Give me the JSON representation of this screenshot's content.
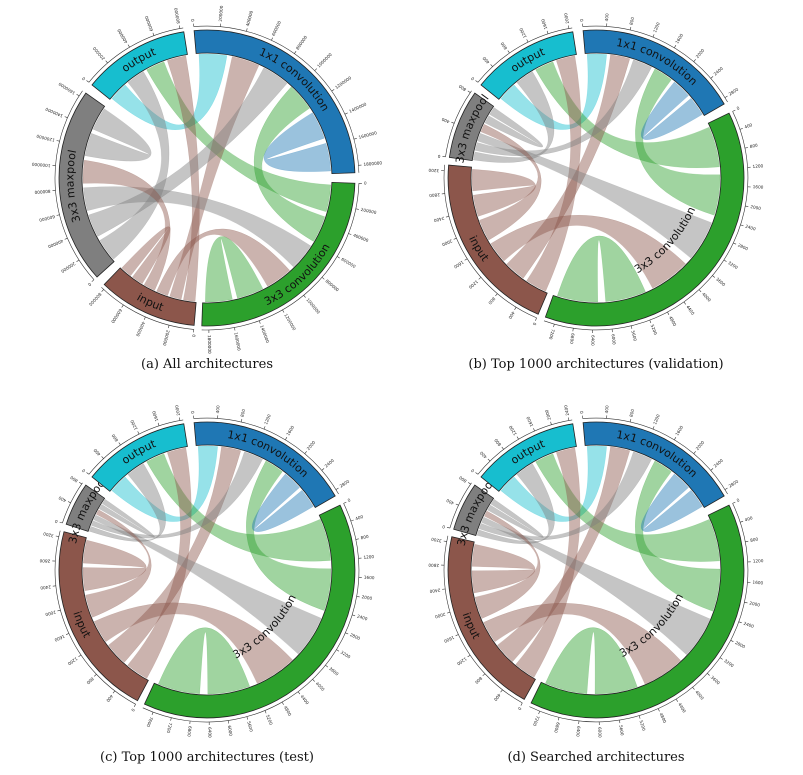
{
  "colors": {
    "output": "#17becf",
    "conv1x1": "#1f77b4",
    "conv3x3": "#2ca02c",
    "input": "#8c564b",
    "maxpool": "#7f7f7f"
  },
  "panels": [
    {
      "caption": "(a) All architectures",
      "segments": [
        {
          "id": "conv1x1",
          "label": "1x1 convolution",
          "color": "#1f77b4",
          "start": -5,
          "end": 88,
          "ticks": [
            "0",
            "200000",
            "400000",
            "600000",
            "800000",
            "1000000",
            "1200000",
            "1400000",
            "1600000",
            "1800000"
          ]
        },
        {
          "id": "conv3x3",
          "label": "3x3 convolution",
          "color": "#2ca02c",
          "start": 92,
          "end": 182,
          "ticks": [
            "0",
            "200000",
            "400000",
            "600000",
            "800000",
            "1000000",
            "1200000",
            "1400000",
            "1600000",
            "1800000"
          ]
        },
        {
          "id": "input",
          "label": "input",
          "color": "#8c564b",
          "start": 185,
          "end": 224,
          "ticks": [
            "0",
            "200000",
            "400000",
            "600000",
            "800000"
          ]
        },
        {
          "id": "maxpool",
          "label": "3x3 maxpool",
          "color": "#7f7f7f",
          "start": 228,
          "end": 305,
          "ticks": [
            "0",
            "200000",
            "400000",
            "600000",
            "800000",
            "1000000",
            "1200000",
            "1400000",
            "1600000"
          ]
        },
        {
          "id": "output",
          "label": "output",
          "color": "#17becf",
          "start": 309,
          "end": 351,
          "ticks": [
            "0",
            "200000",
            "400000",
            "600000",
            "800000"
          ]
        }
      ]
    },
    {
      "caption": "(b) Top 1000 architectures (validation)",
      "segments": [
        {
          "id": "conv1x1",
          "label": "1x1 convolution",
          "color": "#1f77b4",
          "start": -5,
          "end": 60,
          "ticks": [
            "0",
            "400",
            "800",
            "1200",
            "1600",
            "2000",
            "2400",
            "2800"
          ]
        },
        {
          "id": "conv3x3",
          "label": "3x3 convolution",
          "color": "#2ca02c",
          "start": 64,
          "end": 200,
          "ticks": [
            "0",
            "400",
            "800",
            "1200",
            "1600",
            "2000",
            "2400",
            "2800",
            "3200",
            "3600",
            "4000",
            "4400",
            "4800",
            "5200",
            "5600",
            "6000",
            "6400",
            "6800",
            "7200"
          ]
        },
        {
          "id": "input",
          "label": "input",
          "color": "#8c564b",
          "start": 203,
          "end": 275,
          "ticks": [
            "0",
            "400",
            "800",
            "1200",
            "1600",
            "2000",
            "2400",
            "2800",
            "3200"
          ]
        },
        {
          "id": "maxpool",
          "label": "3x3 maxpool",
          "color": "#7f7f7f",
          "start": 278,
          "end": 305,
          "ticks": [
            "0",
            "400",
            "800"
          ]
        },
        {
          "id": "output",
          "label": "output",
          "color": "#17becf",
          "start": 309,
          "end": 351,
          "ticks": [
            "0",
            "400",
            "800",
            "1200",
            "1600",
            "2000"
          ]
        }
      ]
    },
    {
      "caption": "(c) Top 1000 architectures (test)",
      "segments": [
        {
          "id": "conv1x1",
          "label": "1x1 convolution",
          "color": "#1f77b4",
          "start": -5,
          "end": 60,
          "ticks": [
            "0",
            "400",
            "800",
            "1200",
            "1600",
            "2000",
            "2400",
            "2800"
          ]
        },
        {
          "id": "conv3x3",
          "label": "3x3 convolution",
          "color": "#2ca02c",
          "start": 64,
          "end": 205,
          "ticks": [
            "0",
            "400",
            "800",
            "1200",
            "1600",
            "2000",
            "2400",
            "2800",
            "3200",
            "3600",
            "4000",
            "4400",
            "4800",
            "5200",
            "5600",
            "6000",
            "6400",
            "6800",
            "7200",
            "7600"
          ]
        },
        {
          "id": "input",
          "label": "input",
          "color": "#8c564b",
          "start": 208,
          "end": 285,
          "ticks": [
            "0",
            "400",
            "800",
            "1200",
            "1600",
            "2000",
            "2400",
            "2800",
            "3200"
          ]
        },
        {
          "id": "maxpool",
          "label": "3x3 maxpool",
          "color": "#7f7f7f",
          "start": 288,
          "end": 305,
          "ticks": [
            "0",
            "400",
            "800"
          ]
        },
        {
          "id": "output",
          "label": "output",
          "color": "#17becf",
          "start": 309,
          "end": 351,
          "ticks": [
            "0",
            "400",
            "800",
            "1200",
            "1600",
            "2000"
          ]
        }
      ]
    },
    {
      "caption": "(d) Searched architectures",
      "segments": [
        {
          "id": "conv1x1",
          "label": "1x1 convolution",
          "color": "#1f77b4",
          "start": -5,
          "end": 60,
          "ticks": [
            "0",
            "400",
            "800",
            "1200",
            "1600",
            "2000",
            "2400",
            "2800"
          ]
        },
        {
          "id": "conv3x3",
          "label": "3x3 convolution",
          "color": "#2ca02c",
          "start": 64,
          "end": 206,
          "ticks": [
            "0",
            "400",
            "800",
            "1200",
            "1600",
            "2000",
            "2400",
            "2800",
            "3200",
            "3600",
            "4000",
            "4400",
            "4800",
            "5200",
            "5600",
            "6000",
            "6400",
            "6800",
            "7200"
          ]
        },
        {
          "id": "input",
          "label": "input",
          "color": "#8c564b",
          "start": 209,
          "end": 283,
          "ticks": [
            "0",
            "400",
            "800",
            "1200",
            "1600",
            "2000",
            "2400",
            "2800",
            "3200"
          ]
        },
        {
          "id": "maxpool",
          "label": "3x3 maxpool",
          "color": "#7f7f7f",
          "start": 286,
          "end": 305,
          "ticks": [
            "0",
            "400",
            "800"
          ]
        },
        {
          "id": "output",
          "label": "output",
          "color": "#17becf",
          "start": 309,
          "end": 351,
          "ticks": [
            "0",
            "400",
            "800",
            "1200",
            "1600",
            "2000",
            "2400"
          ]
        }
      ]
    }
  ],
  "flows": [
    [
      "output",
      "conv1x1",
      "output"
    ],
    [
      "output",
      "maxpool",
      "maxpool"
    ],
    [
      "output",
      "conv3x3",
      "conv3x3"
    ],
    [
      "output",
      "input",
      "input"
    ],
    [
      "conv1x1",
      "input",
      "input"
    ],
    [
      "conv1x1",
      "maxpool",
      "maxpool"
    ],
    [
      "conv1x1",
      "conv3x3",
      "conv3x3"
    ],
    [
      "conv1x1",
      "conv1x1",
      "conv1x1"
    ],
    [
      "conv3x3",
      "maxpool",
      "maxpool"
    ],
    [
      "conv3x3",
      "input",
      "input"
    ],
    [
      "conv3x3",
      "conv3x3",
      "conv3x3"
    ],
    [
      "input",
      "maxpool",
      "input"
    ],
    [
      "input",
      "input",
      "input"
    ],
    [
      "maxpool",
      "maxpool",
      "maxpool"
    ]
  ]
}
